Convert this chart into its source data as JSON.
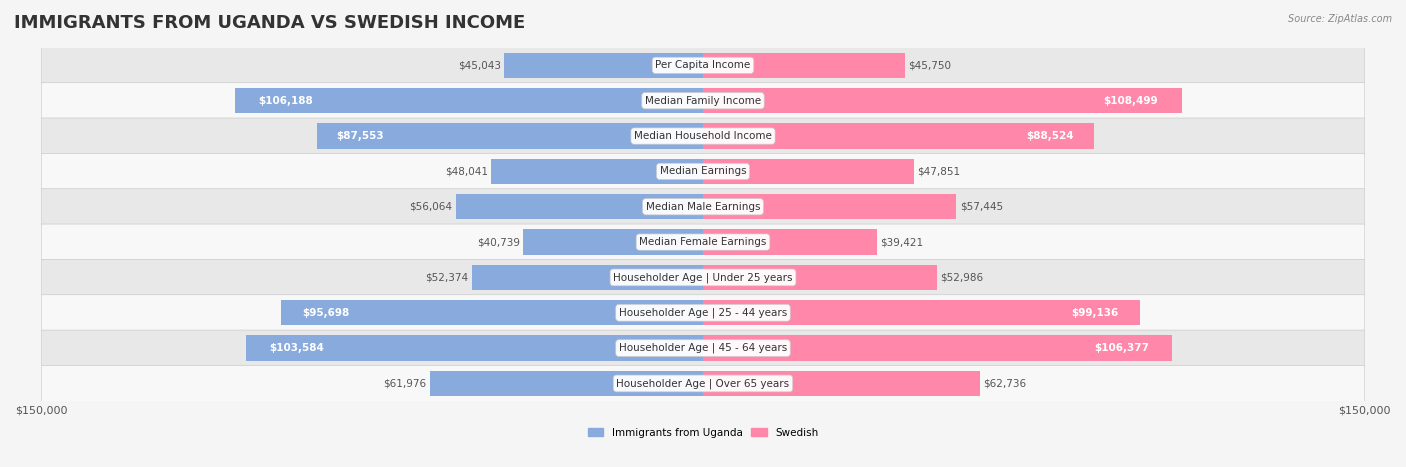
{
  "title": "IMMIGRANTS FROM UGANDA VS SWEDISH INCOME",
  "source": "Source: ZipAtlas.com",
  "categories": [
    "Per Capita Income",
    "Median Family Income",
    "Median Household Income",
    "Median Earnings",
    "Median Male Earnings",
    "Median Female Earnings",
    "Householder Age | Under 25 years",
    "Householder Age | 25 - 44 years",
    "Householder Age | 45 - 64 years",
    "Householder Age | Over 65 years"
  ],
  "uganda_values": [
    45043,
    106188,
    87553,
    48041,
    56064,
    40739,
    52374,
    95698,
    103584,
    61976
  ],
  "swedish_values": [
    45750,
    108499,
    88524,
    47851,
    57445,
    39421,
    52986,
    99136,
    106377,
    62736
  ],
  "uganda_labels": [
    "$45,043",
    "$106,188",
    "$87,553",
    "$48,041",
    "$56,064",
    "$40,739",
    "$52,374",
    "$95,698",
    "$103,584",
    "$61,976"
  ],
  "swedish_labels": [
    "$45,750",
    "$108,499",
    "$88,524",
    "$47,851",
    "$57,445",
    "$39,421",
    "$52,986",
    "$99,136",
    "$106,377",
    "$62,736"
  ],
  "uganda_color": "#88aadd",
  "swedish_color": "#ff88aa",
  "uganda_color_dark": "#5588cc",
  "swedish_color_dark": "#ff5588",
  "max_value": 150000,
  "legend_uganda": "Immigrants from Uganda",
  "legend_swedish": "Swedish",
  "background_color": "#f5f5f5",
  "row_bg_color": "#ffffff",
  "row_alt_bg_color": "#f0f0f0",
  "title_fontsize": 13,
  "label_fontsize": 7.5,
  "axis_label_fontsize": 8,
  "ylabel_fontsize": 8
}
